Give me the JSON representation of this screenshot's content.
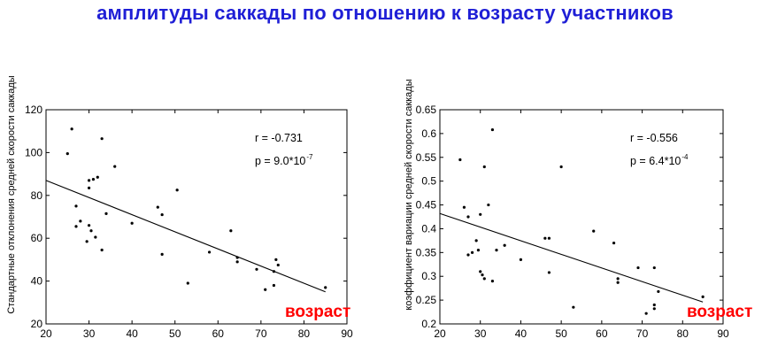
{
  "title": "амплитуды саккады по отношению к возрасту участников",
  "chart_data": [
    {
      "type": "scatter",
      "ylabel": "Стандартные отклонения средней скорости саккады",
      "xlabel": "возраст",
      "xlim": [
        20,
        90
      ],
      "ylim": [
        20,
        120
      ],
      "xticks": [
        "20",
        "30",
        "40",
        "50",
        "60",
        "70",
        "80",
        "90"
      ],
      "yticks": [
        "20",
        "40",
        "60",
        "80",
        "100",
        "120"
      ],
      "r_text": "r = -0.731",
      "p_text": "p = 9.0*10",
      "p_exp": "-7",
      "fit": {
        "x": [
          20,
          85
        ],
        "y": [
          87,
          35
        ]
      },
      "points": [
        [
          25,
          99.5
        ],
        [
          26,
          111
        ],
        [
          27,
          75
        ],
        [
          27,
          65.5
        ],
        [
          28,
          68
        ],
        [
          29.5,
          58.5
        ],
        [
          30,
          87
        ],
        [
          30,
          83.5
        ],
        [
          30,
          66
        ],
        [
          30.5,
          63.5
        ],
        [
          31,
          87.5
        ],
        [
          31.5,
          60.5
        ],
        [
          32,
          88.5
        ],
        [
          33,
          54.5
        ],
        [
          33,
          106.5
        ],
        [
          34,
          71.5
        ],
        [
          36,
          93.5
        ],
        [
          40,
          67
        ],
        [
          46,
          74.5
        ],
        [
          47,
          71
        ],
        [
          47,
          52.5
        ],
        [
          50.5,
          82.5
        ],
        [
          53,
          39
        ],
        [
          58,
          53.5
        ],
        [
          63,
          63.5
        ],
        [
          64.5,
          49
        ],
        [
          64.5,
          51
        ],
        [
          69,
          45.5
        ],
        [
          71,
          36
        ],
        [
          73,
          38
        ],
        [
          73,
          44.5
        ],
        [
          73.5,
          50
        ],
        [
          74,
          47.5
        ],
        [
          85,
          37
        ]
      ]
    },
    {
      "type": "scatter",
      "ylabel": "коэффициент вариации средней скорости  саккады",
      "xlabel": "возраст",
      "xlim": [
        20,
        90
      ],
      "ylim": [
        0.2,
        0.65
      ],
      "xticks": [
        "20",
        "30",
        "40",
        "50",
        "60",
        "70",
        "80",
        "90"
      ],
      "yticks": [
        "0.2",
        "0.25",
        "0.3",
        "0.35",
        "0.4",
        "0.45",
        "0.5",
        "0.55",
        "0.6",
        "0.65"
      ],
      "r_text": "r = -0.556",
      "p_text": "p = 6.4*10",
      "p_exp": "-4",
      "fit": {
        "x": [
          20,
          85
        ],
        "y": [
          0.432,
          0.246
        ]
      },
      "points": [
        [
          25,
          0.545
        ],
        [
          26,
          0.445
        ],
        [
          27,
          0.425
        ],
        [
          27,
          0.345
        ],
        [
          28,
          0.35
        ],
        [
          29,
          0.375
        ],
        [
          29.5,
          0.355
        ],
        [
          30,
          0.43
        ],
        [
          30,
          0.31
        ],
        [
          30.5,
          0.303
        ],
        [
          31,
          0.53
        ],
        [
          31,
          0.295
        ],
        [
          32,
          0.45
        ],
        [
          33,
          0.608
        ],
        [
          33,
          0.29
        ],
        [
          34,
          0.355
        ],
        [
          36,
          0.365
        ],
        [
          40,
          0.335
        ],
        [
          46,
          0.38
        ],
        [
          47,
          0.38
        ],
        [
          47,
          0.308
        ],
        [
          50,
          0.53
        ],
        [
          53,
          0.235
        ],
        [
          58,
          0.395
        ],
        [
          63,
          0.37
        ],
        [
          64,
          0.295
        ],
        [
          64,
          0.287
        ],
        [
          69,
          0.318
        ],
        [
          71,
          0.222
        ],
        [
          73,
          0.24
        ],
        [
          73,
          0.232
        ],
        [
          73,
          0.318
        ],
        [
          74,
          0.268
        ],
        [
          85,
          0.257
        ]
      ]
    }
  ]
}
